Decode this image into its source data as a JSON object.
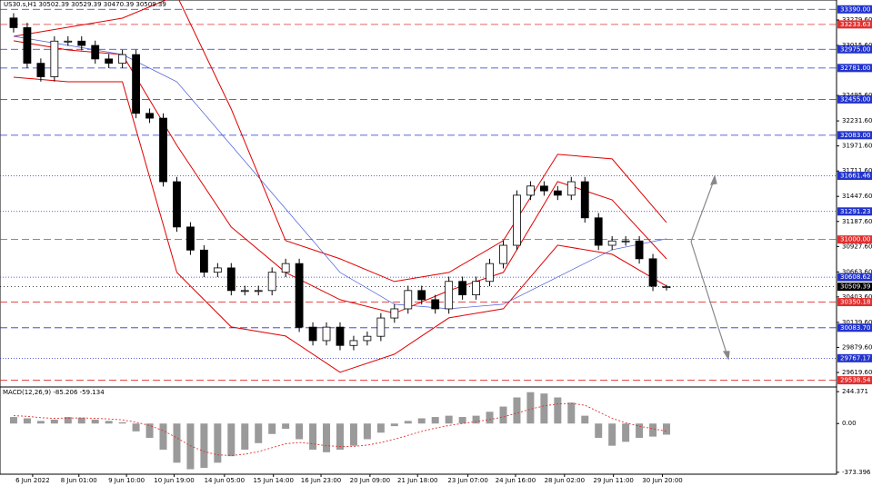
{
  "chart_data": [
    {
      "type": "candlestick",
      "title": "US30.s,H1  30502.39 30529.39 30470.39 30509.39",
      "ylim": [
        29478,
        33487
      ],
      "xlim": [
        -1,
        60.5
      ],
      "open": [
        33300,
        33200,
        32830,
        32690,
        33060,
        33060,
        33015,
        32875,
        32830,
        32920,
        32310,
        32260,
        31600,
        31130,
        30890,
        30660,
        30705,
        30470,
        30470,
        30470,
        30660,
        30750,
        30090,
        29950,
        30090,
        29900,
        29950,
        29995,
        30185,
        30280,
        30470,
        30375,
        30280,
        30565,
        30425,
        30565,
        30750,
        30940,
        31460,
        31555,
        31505,
        31460,
        31600,
        31225,
        30940,
        30985,
        30985,
        30800,
        30502.39
      ],
      "high": [
        33350,
        33250,
        32880,
        33110,
        33110,
        33110,
        33065,
        32925,
        32970,
        32970,
        32360,
        32310,
        31650,
        31180,
        30940,
        30755,
        30755,
        30520,
        30520,
        30710,
        30800,
        30800,
        30140,
        30140,
        30140,
        30000,
        30045,
        30235,
        30330,
        30520,
        30520,
        30425,
        30615,
        30615,
        30615,
        30800,
        30990,
        31510,
        31605,
        31605,
        31555,
        31650,
        31650,
        31275,
        31035,
        31035,
        31035,
        30850,
        30529.39
      ],
      "low": [
        33150,
        32780,
        32640,
        32640,
        33010,
        32965,
        32825,
        32780,
        32780,
        32260,
        32210,
        31550,
        31080,
        30840,
        30610,
        30610,
        30420,
        30420,
        30420,
        30420,
        30610,
        30040,
        29900,
        29900,
        29850,
        29850,
        29900,
        29945,
        30135,
        30230,
        30325,
        30230,
        30230,
        30375,
        30375,
        30515,
        30700,
        30890,
        31410,
        31455,
        31410,
        31410,
        31175,
        30890,
        30890,
        30935,
        30750,
        30465,
        30470.39
      ],
      "close": [
        33200,
        32830,
        32690,
        33060,
        33060,
        33015,
        32875,
        32830,
        32920,
        32310,
        32260,
        31600,
        31130,
        30890,
        30660,
        30705,
        30470,
        30470,
        30470,
        30660,
        30750,
        30090,
        29950,
        30090,
        29900,
        29950,
        29995,
        30185,
        30280,
        30470,
        30375,
        30280,
        30565,
        30425,
        30565,
        30750,
        30940,
        31460,
        31555,
        31505,
        31460,
        31600,
        31225,
        30940,
        30985,
        30985,
        30800,
        30515,
        30509.39
      ],
      "lines_x": [
        0,
        4,
        8,
        12,
        16,
        20,
        24,
        28,
        32,
        36,
        40,
        44,
        48
      ],
      "lines": [
        {
          "color": "#e00000",
          "values": [
            33110,
            33204,
            33298,
            33534,
            32355,
            30988,
            30800,
            30564,
            30658,
            30988,
            31884,
            31837,
            31177
          ]
        },
        {
          "color": "#e00000",
          "values": [
            33063,
            32968,
            32921,
            31978,
            31130,
            30658,
            30375,
            30234,
            30469,
            30658,
            31601,
            31412,
            30799
          ]
        },
        {
          "color": "#e00000",
          "values": [
            32685,
            32638,
            32638,
            30658,
            30092,
            29998,
            29621,
            29809,
            30186,
            30281,
            30941,
            30847,
            30517
          ]
        },
        {
          "color": "#4a5bd8",
          "values": [
            33110,
            33016,
            32921,
            32638,
            31978,
            31318,
            30658,
            30328,
            30281,
            30328,
            30611,
            30894,
            31007
          ]
        }
      ],
      "yticks": [
        {
          "value": 33279.6,
          "label": "33279.60"
        },
        {
          "value": 33015.6,
          "label": "33015.60"
        },
        {
          "value": 32495.6,
          "label": "32495.60"
        },
        {
          "value": 32231.6,
          "label": "32231.60"
        },
        {
          "value": 31971.6,
          "label": "31971.60"
        },
        {
          "value": 31711.6,
          "label": "31711.60"
        },
        {
          "value": 31447.6,
          "label": "31447.60"
        },
        {
          "value": 31187.6,
          "label": "31187.60"
        },
        {
          "value": 30927.6,
          "label": "30927.60"
        },
        {
          "value": 30663.6,
          "label": "30663.60"
        },
        {
          "value": 30403.6,
          "label": "30403.60"
        },
        {
          "value": 30139.6,
          "label": "30139.60"
        },
        {
          "value": 29879.6,
          "label": "29879.60"
        },
        {
          "value": 29619.6,
          "label": "29619.60"
        }
      ],
      "levels": [
        {
          "value": 33390,
          "label": "33390.00",
          "color": "#2233cc",
          "dash": "8 4"
        },
        {
          "value": 33233.63,
          "label": "33233.63",
          "color": "#e03030",
          "dash": "8 4"
        },
        {
          "value": 32975,
          "label": "32975.00",
          "color": "#2233cc",
          "dash": "8 4"
        },
        {
          "value": 32781,
          "label": "32781.00",
          "color": "#2233cc",
          "dash": "8 4"
        },
        {
          "value": 32455,
          "label": "32455.00",
          "color": "#2233cc",
          "dash": "8 4"
        },
        {
          "value": 32083,
          "label": "32083.00",
          "color": "#2233cc",
          "dash": "8 4"
        },
        {
          "value": 31661.46,
          "label": "31661.46",
          "color": "#2233cc",
          "dash": "1 2"
        },
        {
          "value": 31291.23,
          "label": "31291.23",
          "color": "#2233cc",
          "dash": "1 2"
        },
        {
          "value": 31000,
          "label": "31000.00",
          "color": "#e03030",
          "dash": "8 4"
        },
        {
          "value": 30608.62,
          "label": "30608.62",
          "color": "#2233cc",
          "dash": "1 2"
        },
        {
          "value": 30509.39,
          "label": "30509.39",
          "color": "#000000",
          "dash": "1 3"
        },
        {
          "value": 30350.18,
          "label": "30350.18",
          "color": "#e03030",
          "dash": "8 4"
        },
        {
          "value": 30083.7,
          "label": "30083.70",
          "color": "#2233cc",
          "dash": "8 4"
        },
        {
          "value": 29767.17,
          "label": "29767.17",
          "color": "#2233cc",
          "dash": "1 2"
        },
        {
          "value": 29538.54,
          "label": "29538.54",
          "color": "#e03030",
          "dash": "8 4"
        }
      ],
      "xticks": [
        {
          "value": 1.4,
          "label": "6 Jun 2022"
        },
        {
          "value": 4.8,
          "label": "8 Jun 01:00"
        },
        {
          "value": 8.3,
          "label": "9 Jun 10:00"
        },
        {
          "value": 11.8,
          "label": "10 Jun 19:00"
        },
        {
          "value": 15.5,
          "label": "14 Jun 05:00"
        },
        {
          "value": 19.1,
          "label": "15 Jun 14:00"
        },
        {
          "value": 22.6,
          "label": "16 Jun 23:00"
        },
        {
          "value": 26.2,
          "label": "20 Jun 09:00"
        },
        {
          "value": 29.7,
          "label": "21 Jun 18:00"
        },
        {
          "value": 33.4,
          "label": "23 Jun 07:00"
        },
        {
          "value": 36.9,
          "label": "24 Jun 16:00"
        },
        {
          "value": 40.5,
          "label": "28 Jun 02:00"
        },
        {
          "value": 44.1,
          "label": "29 Jun 11:00"
        },
        {
          "value": 47.7,
          "label": "30 Jun 20:00"
        }
      ]
    },
    {
      "type": "macd",
      "title": "MACD(12,26,9) -85.206 -59.134",
      "ylim": [
        -388,
        273
      ],
      "xlim": [
        -1,
        60.5
      ],
      "values": [
        50,
        40,
        20,
        30,
        50,
        45,
        30,
        20,
        10,
        -60,
        -110,
        -200,
        -300,
        -350,
        -340,
        -300,
        -250,
        -200,
        -150,
        -80,
        -40,
        -120,
        -200,
        -220,
        -200,
        -170,
        -120,
        -70,
        -20,
        20,
        40,
        50,
        60,
        50,
        60,
        90,
        130,
        200,
        240,
        230,
        200,
        160,
        60,
        -110,
        -170,
        -140,
        -110,
        -100,
        -85.206
      ],
      "signal": [
        60,
        55,
        45,
        40,
        42,
        43,
        40,
        35,
        28,
        10,
        -15,
        -55,
        -110,
        -170,
        -215,
        -240,
        -245,
        -235,
        -215,
        -185,
        -155,
        -145,
        -155,
        -170,
        -175,
        -175,
        -165,
        -145,
        -120,
        -90,
        -60,
        -35,
        -15,
        0,
        15,
        30,
        50,
        80,
        110,
        135,
        150,
        155,
        140,
        90,
        40,
        5,
        -20,
        -40,
        -59.134
      ],
      "yticks": [
        {
          "value": 244.371,
          "label": "244.371"
        },
        {
          "value": 0,
          "label": "0.00"
        },
        {
          "value": -373.396,
          "label": "-373.396"
        }
      ]
    }
  ]
}
